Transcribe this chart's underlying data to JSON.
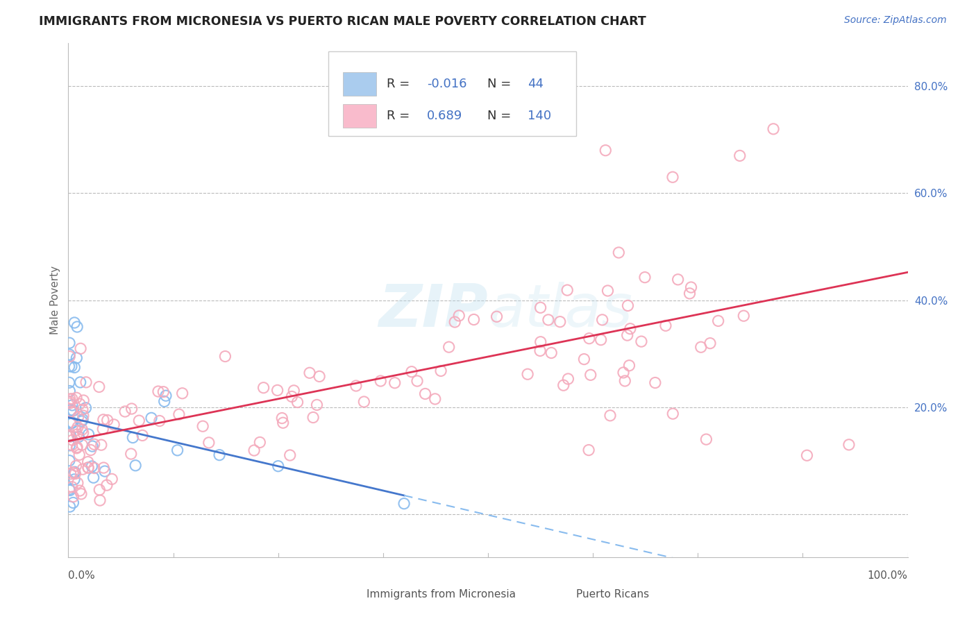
{
  "title": "IMMIGRANTS FROM MICRONESIA VS PUERTO RICAN MALE POVERTY CORRELATION CHART",
  "source": "Source: ZipAtlas.com",
  "ylabel": "Male Poverty",
  "y_ticks": [
    0.0,
    0.2,
    0.4,
    0.6,
    0.8
  ],
  "y_tick_labels": [
    "",
    "20.0%",
    "40.0%",
    "60.0%",
    "80.0%"
  ],
  "xmin": 0.0,
  "xmax": 1.0,
  "ymin": -0.08,
  "ymax": 0.88,
  "blue_R": -0.016,
  "blue_N": 44,
  "pink_R": 0.689,
  "pink_N": 140,
  "blue_scatter_color": "#88BBEE",
  "pink_scatter_color": "#F4AABC",
  "blue_line_color": "#4477CC",
  "pink_line_color": "#DD3355",
  "blue_fill": "#AACCEE",
  "pink_fill": "#F9BBCC",
  "legend_label_color": "#333333",
  "legend_value_color": "#4472C4",
  "watermark": "ZIPatlas",
  "background_color": "#FFFFFF",
  "grid_color": "#BBBBBB",
  "title_color": "#222222",
  "source_color": "#4472C4",
  "ytick_color": "#4472C4",
  "xlabel_color": "#555555"
}
